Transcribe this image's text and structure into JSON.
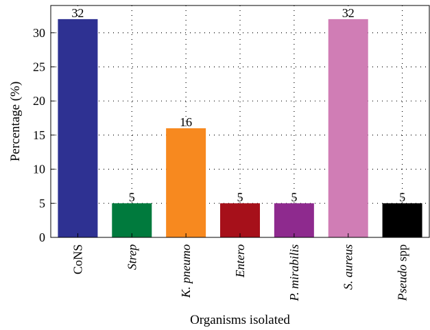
{
  "chart_data": {
    "type": "bar",
    "title": "",
    "xlabel": "Organisms isolated",
    "ylabel": "Percentage (%)",
    "ylim": [
      0,
      34
    ],
    "yticks": [
      0,
      5,
      10,
      15,
      20,
      25,
      30
    ],
    "grid": true,
    "legend": "none",
    "categories": [
      {
        "label": "CoNS",
        "italic": "",
        "rest": "CoNS"
      },
      {
        "label": "Strep",
        "italic": "Strep",
        "rest": ""
      },
      {
        "label": "K. pneumo",
        "italic": "K. pneumo",
        "rest": ""
      },
      {
        "label": "Entero",
        "italic": "Entero",
        "rest": ""
      },
      {
        "label": "P. mirabilis",
        "italic": "P. mirabilis",
        "rest": ""
      },
      {
        "label": "S. aureus",
        "italic": "S. aureus",
        "rest": ""
      },
      {
        "label": "Pseudo spp",
        "italic": "Pseudo",
        "rest": " spp"
      }
    ],
    "values": [
      32,
      5,
      16,
      5,
      5,
      32,
      5
    ],
    "value_labels": [
      "32",
      "5",
      "16",
      "5",
      "5",
      "32",
      "5"
    ],
    "colors": [
      "#2e3192",
      "#007a3d",
      "#f7891f",
      "#a6101a",
      "#8e2a8e",
      "#d07db5",
      "#000000"
    ]
  }
}
